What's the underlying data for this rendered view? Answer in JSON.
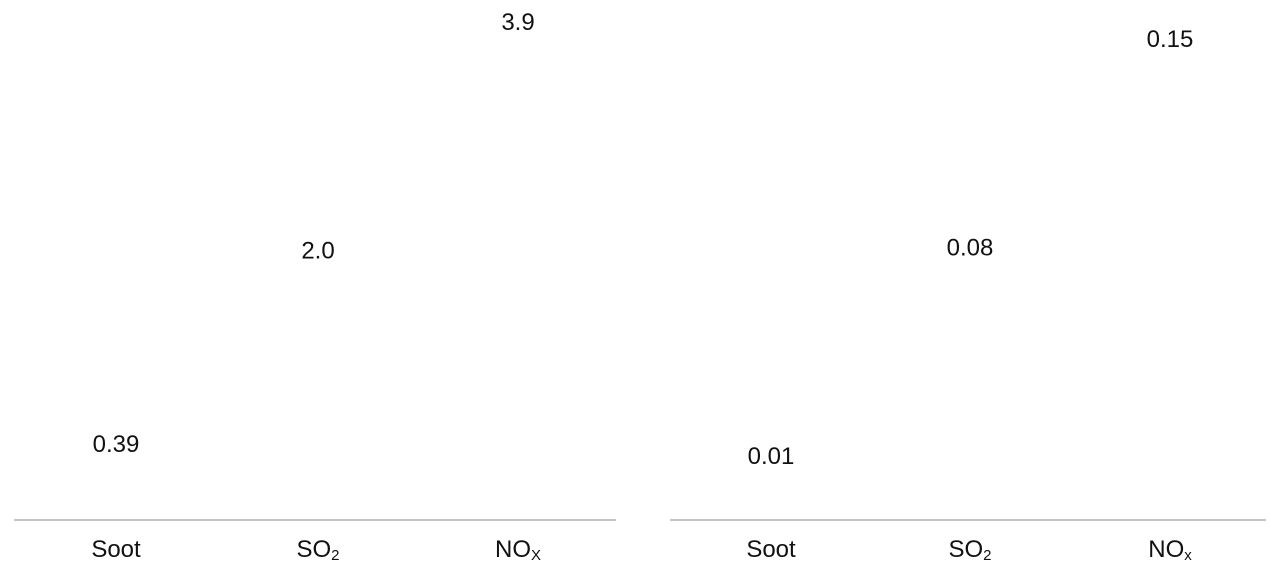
{
  "chart_data": [
    {
      "type": "bar",
      "categories": [
        "Soot",
        "SO2",
        "NOx"
      ],
      "category_display": [
        {
          "base": "Soot",
          "sub": ""
        },
        {
          "base": "SO",
          "sub": "2"
        },
        {
          "base": "NO",
          "sub": "X"
        }
      ],
      "values": [
        0.39,
        2.0,
        3.9
      ],
      "value_labels": [
        "0.39",
        "2.0",
        "3.9"
      ],
      "ylim": [
        0,
        3.9
      ],
      "grid": false,
      "bar_color": "#ffffff"
    },
    {
      "type": "bar",
      "categories": [
        "Soot",
        "SO2",
        "NOx"
      ],
      "category_display": [
        {
          "base": "Soot",
          "sub": ""
        },
        {
          "base": "SO",
          "sub": "2"
        },
        {
          "base": "NO",
          "sub": "x"
        }
      ],
      "values": [
        0.01,
        0.08,
        0.15
      ],
      "value_labels": [
        "0.01",
        "0.08",
        "0.15"
      ],
      "ylim": [
        0,
        0.15
      ],
      "grid": false,
      "bar_color": "#ffffff"
    }
  ],
  "colors": {
    "axis": "#c4c4c4",
    "text": "#111111",
    "background": "#ffffff"
  }
}
